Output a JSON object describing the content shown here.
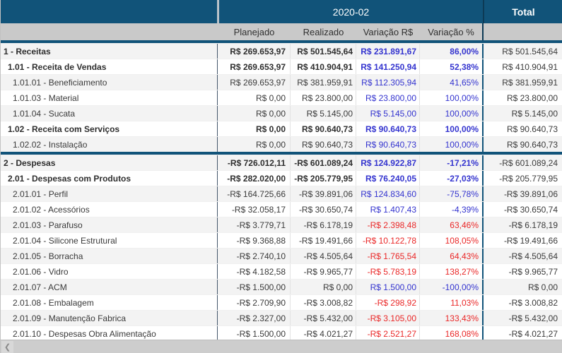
{
  "header": {
    "period_label": "2020-02",
    "total_label": "Total"
  },
  "columns": [
    "Planejado",
    "Realizado",
    "Variação R$",
    "Variação %"
  ],
  "colors": {
    "navy": "#115379",
    "navy_dark": "#0d3a55",
    "positive_blue": "#3434cf",
    "negative_red": "#ea2828",
    "subheader_gray": "#c9c9c9"
  },
  "scrollbar": {
    "left_arrow": "❮"
  },
  "table": {
    "sections": [
      {
        "rows": [
          {
            "label": "1 - Receitas",
            "level": 0,
            "bold": true,
            "planejado": "R$ 269.653,97",
            "realizado": "R$ 501.545,64",
            "variacao_rs": "R$ 231.891,67",
            "variacao_rs_color": "blue",
            "variacao_pct": "86,00%",
            "variacao_pct_color": "blue",
            "total": "R$ 501.545,64"
          },
          {
            "label": "1.01 - Receita de Vendas",
            "level": 1,
            "bold": true,
            "planejado": "R$ 269.653,97",
            "realizado": "R$ 410.904,91",
            "variacao_rs": "R$ 141.250,94",
            "variacao_rs_color": "blue",
            "variacao_pct": "52,38%",
            "variacao_pct_color": "blue",
            "total": "R$ 410.904,91"
          },
          {
            "label": "1.01.01 - Beneficiamento",
            "level": 2,
            "bold": false,
            "planejado": "R$ 269.653,97",
            "realizado": "R$ 381.959,91",
            "variacao_rs": "R$ 112.305,94",
            "variacao_rs_color": "blue",
            "variacao_pct": "41,65%",
            "variacao_pct_color": "blue",
            "total": "R$ 381.959,91"
          },
          {
            "label": "1.01.03 - Material",
            "level": 2,
            "bold": false,
            "planejado": "R$ 0,00",
            "realizado": "R$ 23.800,00",
            "variacao_rs": "R$ 23.800,00",
            "variacao_rs_color": "blue",
            "variacao_pct": "100,00%",
            "variacao_pct_color": "blue",
            "total": "R$ 23.800,00"
          },
          {
            "label": "1.01.04 - Sucata",
            "level": 2,
            "bold": false,
            "planejado": "R$ 0,00",
            "realizado": "R$ 5.145,00",
            "variacao_rs": "R$ 5.145,00",
            "variacao_rs_color": "blue",
            "variacao_pct": "100,00%",
            "variacao_pct_color": "blue",
            "total": "R$ 5.145,00"
          },
          {
            "label": "1.02 - Receita com Serviços",
            "level": 1,
            "bold": true,
            "planejado": "R$ 0,00",
            "realizado": "R$ 90.640,73",
            "variacao_rs": "R$ 90.640,73",
            "variacao_rs_color": "blue",
            "variacao_pct": "100,00%",
            "variacao_pct_color": "blue",
            "total": "R$ 90.640,73"
          },
          {
            "label": "1.02.02 - Instalação",
            "level": 2,
            "bold": false,
            "planejado": "R$ 0,00",
            "realizado": "R$ 90.640,73",
            "variacao_rs": "R$ 90.640,73",
            "variacao_rs_color": "blue",
            "variacao_pct": "100,00%",
            "variacao_pct_color": "blue",
            "total": "R$ 90.640,73"
          }
        ]
      },
      {
        "rows": [
          {
            "label": "2 - Despesas",
            "level": 0,
            "bold": true,
            "planejado": "-R$ 726.012,11",
            "realizado": "-R$ 601.089,24",
            "variacao_rs": "R$ 124.922,87",
            "variacao_rs_color": "blue",
            "variacao_pct": "-17,21%",
            "variacao_pct_color": "blue",
            "total": "-R$ 601.089,24"
          },
          {
            "label": "2.01 - Despesas com Produtos",
            "level": 1,
            "bold": true,
            "planejado": "-R$ 282.020,00",
            "realizado": "-R$ 205.779,95",
            "variacao_rs": "R$ 76.240,05",
            "variacao_rs_color": "blue",
            "variacao_pct": "-27,03%",
            "variacao_pct_color": "blue",
            "total": "-R$ 205.779,95"
          },
          {
            "label": "2.01.01 - Perfil",
            "level": 2,
            "bold": false,
            "planejado": "-R$ 164.725,66",
            "realizado": "-R$ 39.891,06",
            "variacao_rs": "R$ 124.834,60",
            "variacao_rs_color": "blue",
            "variacao_pct": "-75,78%",
            "variacao_pct_color": "blue",
            "total": "-R$ 39.891,06"
          },
          {
            "label": "2.01.02 - Acessórios",
            "level": 2,
            "bold": false,
            "planejado": "-R$ 32.058,17",
            "realizado": "-R$ 30.650,74",
            "variacao_rs": "R$ 1.407,43",
            "variacao_rs_color": "blue",
            "variacao_pct": "-4,39%",
            "variacao_pct_color": "blue",
            "total": "-R$ 30.650,74"
          },
          {
            "label": "2.01.03 - Parafuso",
            "level": 2,
            "bold": false,
            "planejado": "-R$ 3.779,71",
            "realizado": "-R$ 6.178,19",
            "variacao_rs": "-R$ 2.398,48",
            "variacao_rs_color": "red",
            "variacao_pct": "63,46%",
            "variacao_pct_color": "red",
            "total": "-R$ 6.178,19"
          },
          {
            "label": "2.01.04 - Silicone Estrutural",
            "level": 2,
            "bold": false,
            "planejado": "-R$ 9.368,88",
            "realizado": "-R$ 19.491,66",
            "variacao_rs": "-R$ 10.122,78",
            "variacao_rs_color": "red",
            "variacao_pct": "108,05%",
            "variacao_pct_color": "red",
            "total": "-R$ 19.491,66"
          },
          {
            "label": "2.01.05 - Borracha",
            "level": 2,
            "bold": false,
            "planejado": "-R$ 2.740,10",
            "realizado": "-R$ 4.505,64",
            "variacao_rs": "-R$ 1.765,54",
            "variacao_rs_color": "red",
            "variacao_pct": "64,43%",
            "variacao_pct_color": "red",
            "total": "-R$ 4.505,64"
          },
          {
            "label": "2.01.06 - Vidro",
            "level": 2,
            "bold": false,
            "planejado": "-R$ 4.182,58",
            "realizado": "-R$ 9.965,77",
            "variacao_rs": "-R$ 5.783,19",
            "variacao_rs_color": "red",
            "variacao_pct": "138,27%",
            "variacao_pct_color": "red",
            "total": "-R$ 9.965,77"
          },
          {
            "label": "2.01.07 - ACM",
            "level": 2,
            "bold": false,
            "planejado": "-R$ 1.500,00",
            "realizado": "R$ 0,00",
            "variacao_rs": "R$ 1.500,00",
            "variacao_rs_color": "blue",
            "variacao_pct": "-100,00%",
            "variacao_pct_color": "blue",
            "total": "R$ 0,00"
          },
          {
            "label": "2.01.08 - Embalagem",
            "level": 2,
            "bold": false,
            "planejado": "-R$ 2.709,90",
            "realizado": "-R$ 3.008,82",
            "variacao_rs": "-R$ 298,92",
            "variacao_rs_color": "red",
            "variacao_pct": "11,03%",
            "variacao_pct_color": "red",
            "total": "-R$ 3.008,82"
          },
          {
            "label": "2.01.09 - Manutenção Fabrica",
            "level": 2,
            "bold": false,
            "planejado": "-R$ 2.327,00",
            "realizado": "-R$ 5.432,00",
            "variacao_rs": "-R$ 3.105,00",
            "variacao_rs_color": "red",
            "variacao_pct": "133,43%",
            "variacao_pct_color": "red",
            "total": "-R$ 5.432,00"
          },
          {
            "label": "2.01.10 - Despesas Obra Alimentação",
            "level": 2,
            "bold": false,
            "planejado": "-R$ 1.500,00",
            "realizado": "-R$ 4.021,27",
            "variacao_rs": "-R$ 2.521,27",
            "variacao_rs_color": "red",
            "variacao_pct": "168,08%",
            "variacao_pct_color": "red",
            "total": "-R$ 4.021,27"
          }
        ]
      }
    ]
  }
}
